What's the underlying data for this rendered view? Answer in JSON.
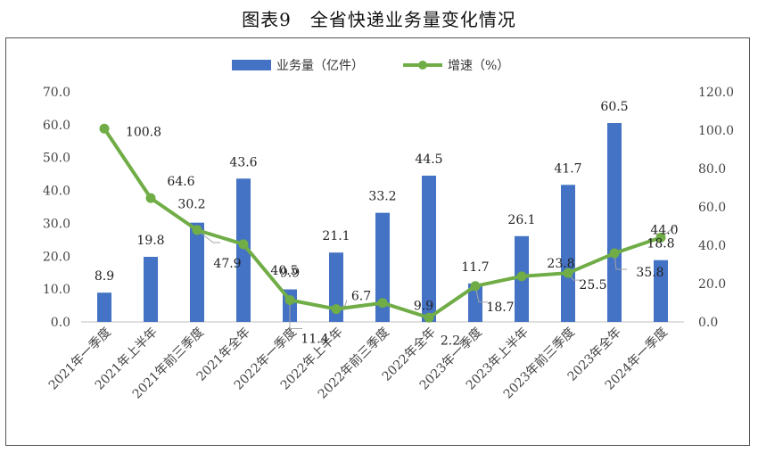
{
  "title": "图表9　全省快递业务量变化情况",
  "chart_data": {
    "type": "bar+line",
    "categories": [
      "2021年一季度",
      "2021年上半年",
      "2021年前三季度",
      "2021年全年",
      "2022年一季度",
      "2022年上半年",
      "2022年前三季度",
      "2022年全年",
      "2023年一季度",
      "2023年上半年",
      "2023年前三季度",
      "2023年全年",
      "2024年一季度"
    ],
    "series": [
      {
        "name": "业务量（亿件）",
        "type": "bar",
        "axis": "left",
        "color": "#4472C4",
        "values": [
          8.9,
          19.8,
          30.2,
          43.6,
          9.9,
          21.1,
          33.2,
          44.5,
          11.7,
          26.1,
          41.7,
          60.5,
          18.8
        ]
      },
      {
        "name": "增速（%）",
        "type": "line",
        "axis": "right",
        "color": "#70AD47",
        "values": [
          100.8,
          64.6,
          47.9,
          40.5,
          11.4,
          6.7,
          9.9,
          2.2,
          18.7,
          23.8,
          25.5,
          35.8,
          44.0
        ]
      }
    ],
    "y_left": {
      "min": 0,
      "max": 70,
      "step": 10,
      "ticks": [
        "0.0",
        "10.0",
        "20.0",
        "30.0",
        "40.0",
        "50.0",
        "60.0",
        "70.0"
      ]
    },
    "y_right": {
      "min": 0,
      "max": 120,
      "step": 20,
      "ticks": [
        "0.0",
        "20.0",
        "40.0",
        "60.0",
        "80.0",
        "100.0",
        "120.0"
      ]
    },
    "bar_labels": [
      "8.9",
      "19.8",
      "30.2",
      "43.6",
      "9.9",
      "21.1",
      "33.2",
      "44.5",
      "11.7",
      "26.1",
      "41.7",
      "60.5",
      "18.8"
    ],
    "line_labels": [
      "100.8",
      "64.6",
      "47.9",
      "40.5",
      "11.4",
      "6.7",
      "9.9",
      "2.2",
      "18.7",
      "23.8",
      "25.5",
      "35.8",
      "44.0"
    ],
    "legend_position": "top-center",
    "grid": false
  }
}
